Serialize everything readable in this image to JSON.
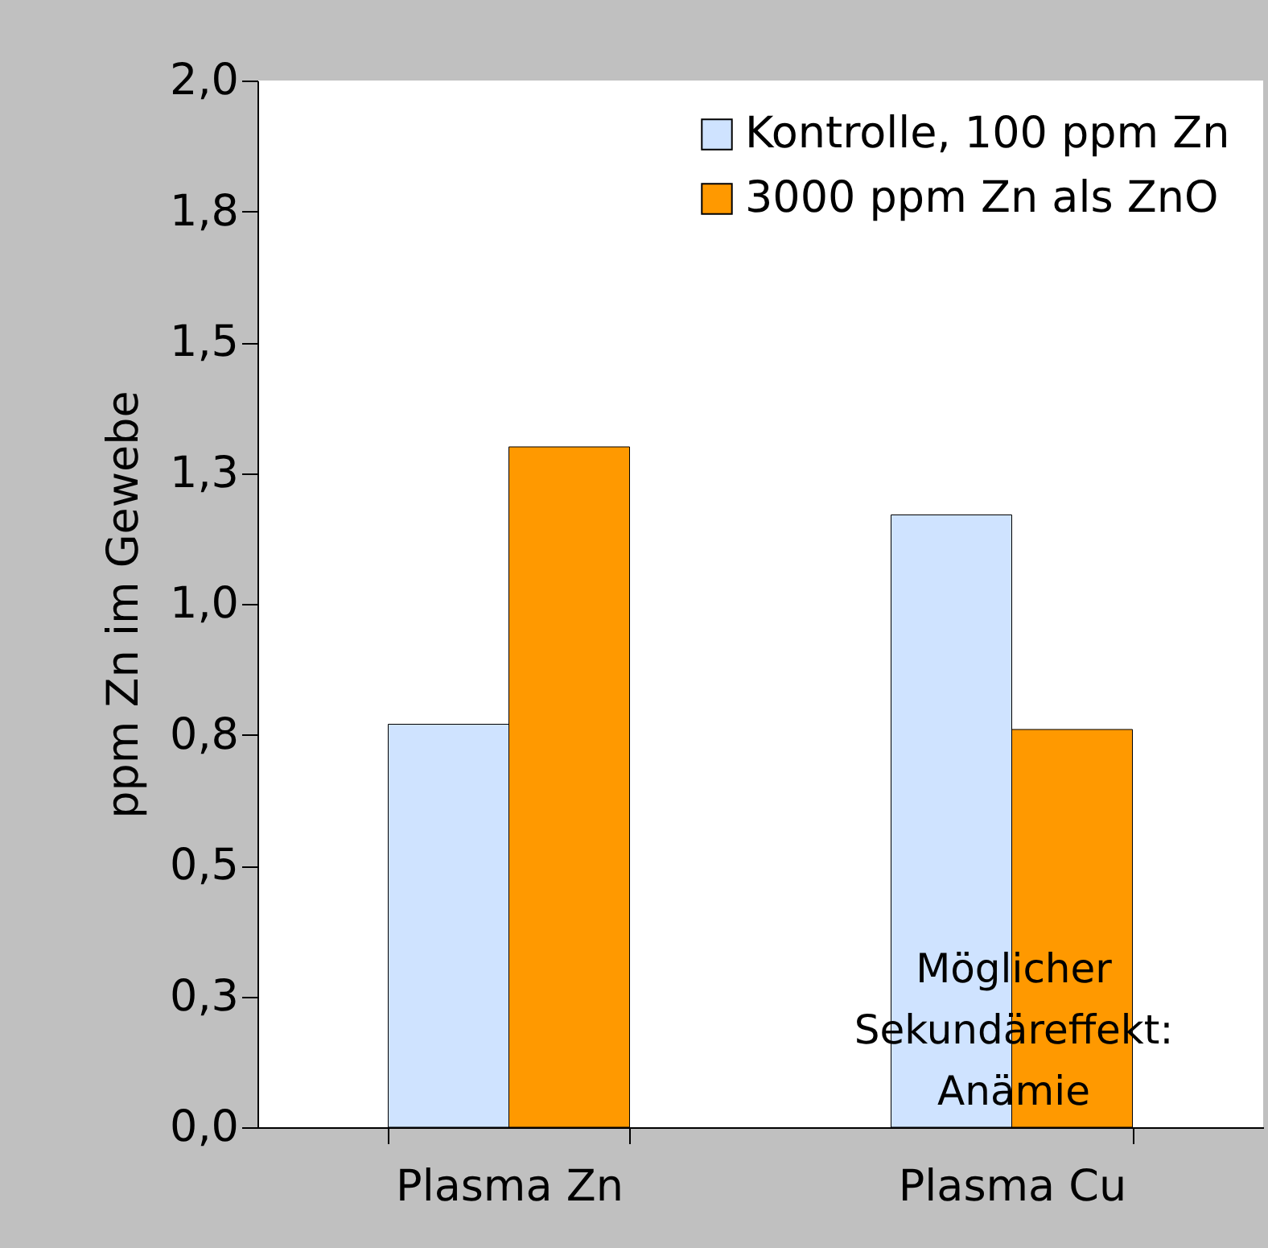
{
  "chart_data": {
    "type": "bar",
    "ylabel": "ppm Zn im Gewebe",
    "categories": [
      "Plasma Zn",
      "Plasma Cu"
    ],
    "series": [
      {
        "name": "Kontrolle, 100 ppm Zn",
        "color": "#cfe3ff",
        "values": [
          0.77,
          1.17
        ]
      },
      {
        "name": "3000 ppm Zn als ZnO",
        "color": "#ff9900",
        "values": [
          1.3,
          0.76
        ]
      }
    ],
    "ylim": [
      0,
      2.0
    ],
    "yticks": [
      {
        "value": 0,
        "label": "0,0"
      },
      {
        "value": 0.25,
        "label": "0,3"
      },
      {
        "value": 0.5,
        "label": "0,5"
      },
      {
        "value": 0.75,
        "label": "0,8"
      },
      {
        "value": 1.0,
        "label": "1,0"
      },
      {
        "value": 1.25,
        "label": "1,3"
      },
      {
        "value": 1.5,
        "label": "1,5"
      },
      {
        "value": 1.75,
        "label": "1,8"
      },
      {
        "value": 2.0,
        "label": "2,0"
      }
    ],
    "legend": "top right",
    "grid": false,
    "annotations": [
      "Möglicher\nSekundäreffekt:\nAnämie"
    ]
  }
}
